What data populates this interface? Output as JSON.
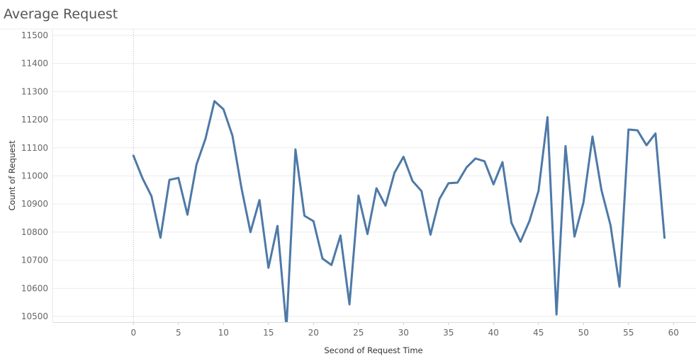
{
  "chart_data": {
    "type": "line",
    "title": "Average Request",
    "xlabel": "Second of Request Time",
    "ylabel": "Count of Request",
    "xlim": [
      -9,
      62.5
    ],
    "ylim": [
      10480,
      11520
    ],
    "xticks": [
      0,
      5,
      10,
      15,
      20,
      25,
      30,
      35,
      40,
      45,
      50,
      55,
      60
    ],
    "yticks": [
      10500,
      10600,
      10700,
      10800,
      10900,
      11000,
      11100,
      11200,
      11300,
      11400,
      11500
    ],
    "grid": "horizontal",
    "zero_reference_line": "vertical dotted at x = 0",
    "line_color": "#4e79a7",
    "series": [
      {
        "x": [
          0,
          1,
          2,
          3,
          4,
          5,
          6,
          7,
          8,
          9,
          10,
          11,
          12,
          13,
          14,
          15,
          16,
          17,
          18,
          19,
          20,
          21,
          22,
          23,
          24,
          25,
          26,
          27,
          28,
          29,
          30,
          31,
          32,
          33,
          34,
          35,
          36,
          37,
          38,
          39,
          40,
          41,
          42,
          43,
          44,
          45,
          46,
          47,
          48,
          49,
          50,
          51,
          52,
          53,
          54,
          55,
          56,
          57,
          58,
          59
        ],
        "values": [
          11072,
          10992,
          10928,
          10780,
          10986,
          10993,
          10862,
          11040,
          11132,
          11266,
          11237,
          11143,
          10957,
          10800,
          10914,
          10673,
          10822,
          10460,
          11094,
          10858,
          10839,
          10706,
          10683,
          10788,
          10543,
          10930,
          10793,
          10956,
          10894,
          11011,
          11068,
          10982,
          10946,
          10791,
          10918,
          10974,
          10976,
          11030,
          11062,
          11052,
          10970,
          11049,
          10833,
          10766,
          10840,
          10946,
          11209,
          10507,
          11106,
          10784,
          10906,
          11140,
          10949,
          10825,
          10606,
          11165,
          11162,
          11109,
          11151,
          10780
        ]
      }
    ]
  }
}
